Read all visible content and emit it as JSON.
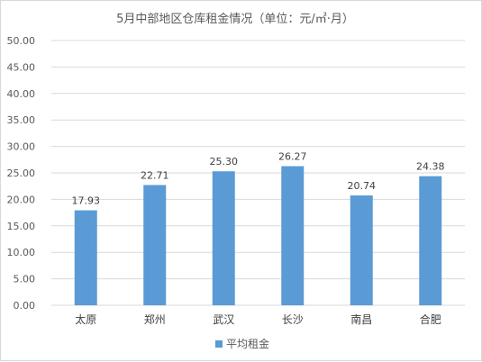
{
  "chart_data": {
    "type": "bar",
    "title": "5月中部地区仓库租金情况（单位：元/㎡·月）",
    "categories": [
      "太原",
      "郑州",
      "武汉",
      "长沙",
      "南昌",
      "合肥"
    ],
    "series": [
      {
        "name": "平均租金",
        "values": [
          17.93,
          22.71,
          25.3,
          26.27,
          20.74,
          24.38
        ],
        "color": "#5b9bd5"
      }
    ],
    "value_labels": [
      "17.93",
      "22.71",
      "25.30",
      "26.27",
      "20.74",
      "24.38"
    ],
    "ylim": [
      0,
      50
    ],
    "yticks": [
      0,
      5,
      10,
      15,
      20,
      25,
      30,
      35,
      40,
      45,
      50
    ],
    "ytick_labels": [
      "0.00",
      "5.00",
      "10.00",
      "15.00",
      "20.00",
      "25.00",
      "30.00",
      "35.00",
      "40.00",
      "45.00",
      "50.00"
    ],
    "grid": true,
    "legend": "bottom",
    "gridline_color": "#d9d9d9"
  }
}
